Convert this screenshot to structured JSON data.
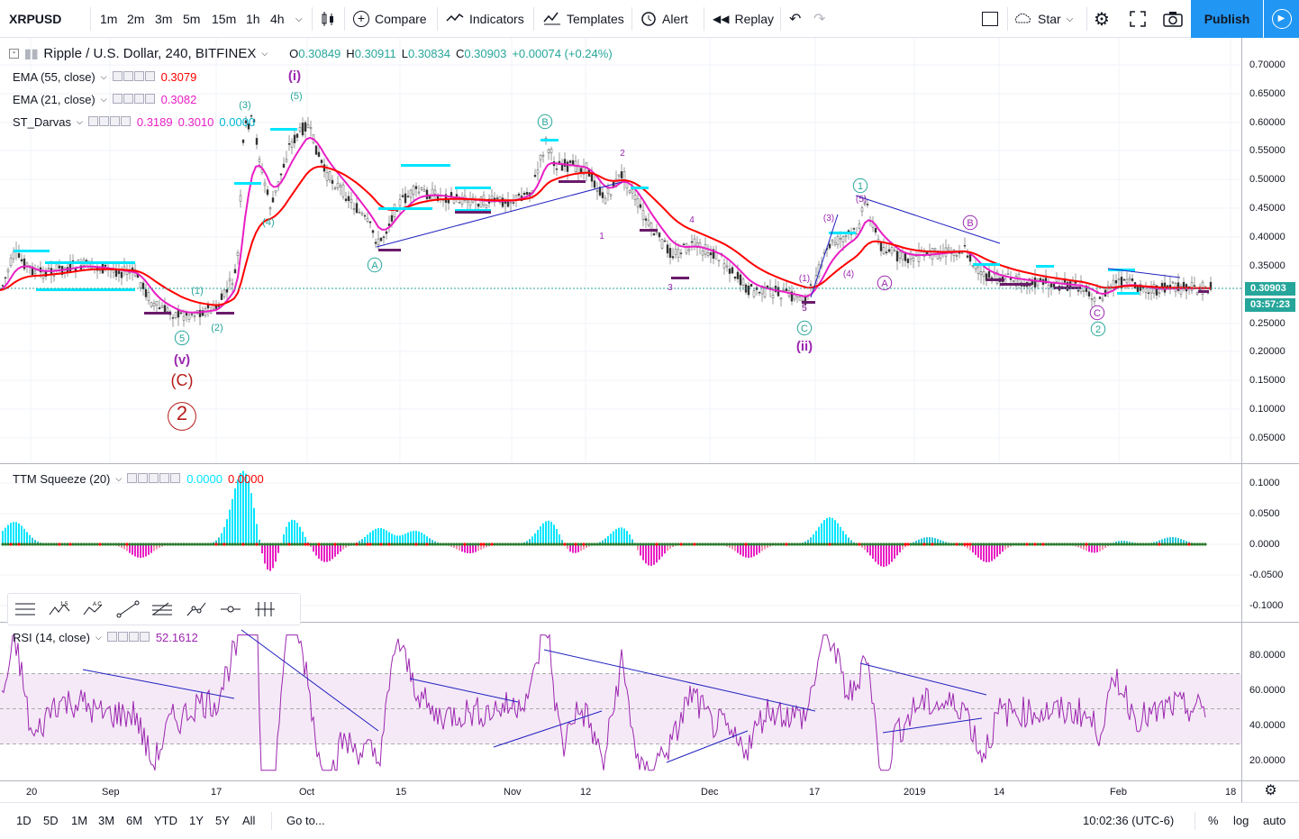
{
  "toolbar": {
    "symbol": "XRPUSD",
    "timeframes": [
      "1m",
      "2m",
      "3m",
      "5m",
      "15m",
      "1h",
      "4h"
    ],
    "active_timeframe": "4h",
    "compare": "Compare",
    "indicators": "Indicators",
    "templates": "Templates",
    "alert": "Alert",
    "replay": "Replay",
    "star": "Star",
    "publish": "Publish"
  },
  "legend": {
    "title": "Ripple / U.S. Dollar, 240, BITFINEX",
    "o_label": "O",
    "o": "0.30849",
    "h_label": "H",
    "h": "0.30911",
    "l_label": "L",
    "l": "0.30834",
    "c_label": "C",
    "c": "0.30903",
    "change": "+0.00074 (+0.24%)",
    "ema55_name": "EMA (55, close)",
    "ema55_value": "0.3079",
    "ema21_name": "EMA (21, close)",
    "ema21_value": "0.3082",
    "darvas_name": "ST_Darvas",
    "darvas_v1": "0.3189",
    "darvas_v2": "0.3010",
    "darvas_v3": "0.0000",
    "ttm_name": "TTM Squeeze (20)",
    "ttm_v1": "0.0000",
    "ttm_v2": "0.0000",
    "rsi_name": "RSI (14, close)",
    "rsi_value": "52.1612"
  },
  "price_axis": [
    "0.70000",
    "0.65000",
    "0.60000",
    "0.55000",
    "0.50000",
    "0.45000",
    "0.40000",
    "0.35000",
    "0.25000",
    "0.20000",
    "0.15000",
    "0.10000",
    "0.05000"
  ],
  "current_price": "0.30903",
  "countdown": "03:57:23",
  "ttm_axis": [
    "0.1000",
    "0.0500",
    "0.0000",
    "-0.0500",
    "-0.1000"
  ],
  "rsi_axis": [
    "80.0000",
    "60.0000",
    "40.0000",
    "20.0000"
  ],
  "time_axis": [
    "20",
    "Sep",
    "17",
    "Oct",
    "15",
    "Nov",
    "12",
    "Dec",
    "17",
    "2019",
    "14",
    "Feb",
    "18"
  ],
  "waves": {
    "w_i": "(i)",
    "w_ii": "(ii)",
    "w_v": "(v)",
    "w_C_big": "(C)",
    "w_2_big": "2",
    "w3": "(3)",
    "w5": "(5)",
    "w4": "(4)",
    "w1p": "(1)",
    "w2p": "(2)",
    "cA": "A",
    "cB": "B",
    "cC": "C",
    "c5": "5",
    "c1": "1",
    "c2": "2",
    "n1": "1",
    "n2": "2",
    "n3": "3",
    "n4": "4",
    "n5": "5"
  },
  "bottom": {
    "ranges": [
      "1D",
      "5D",
      "1M",
      "3M",
      "6M",
      "YTD",
      "1Y",
      "5Y",
      "All"
    ],
    "goto": "Go to...",
    "clock": "10:02:36 (UTC-6)",
    "pct": "%",
    "log": "log",
    "auto": "auto"
  },
  "colors": {
    "ema55": "#ff0000",
    "ema21": "#e91ec4",
    "darvas": "#00e5ff",
    "rsi": "#9c27b0",
    "accent": "#2196f3",
    "wave": "#9c27b0",
    "wave_teal": "#26a69a",
    "wave_red": "#b71c1c"
  }
}
